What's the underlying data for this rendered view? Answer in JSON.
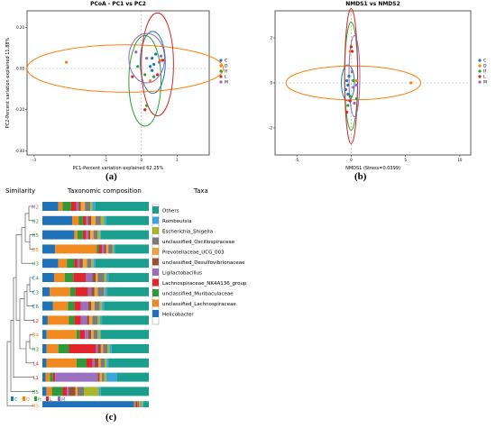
{
  "panel_labels": {
    "a": "(a)",
    "b": "(b)",
    "c": "(c)"
  },
  "colors": {
    "C": "#1f77b4",
    "D": "#ff7f0e",
    "H": "#2ca02c",
    "L": "#d62728",
    "M": "#9467bd"
  },
  "chart_data": [
    {
      "type": "scatter",
      "title": "PCoA - PC1 vs PC2",
      "xlabel": "PC1-Percent variation explained 62.25%",
      "ylabel": "PC2-Percent variation explained 11.88%",
      "xlim": [
        -3.2,
        1.9
      ],
      "ylim": [
        -0.42,
        0.28
      ],
      "xticks": [
        -3,
        -2,
        -1,
        0,
        1
      ],
      "yticks": [
        -0.4,
        -0.2,
        0,
        0.2
      ],
      "xtick_labels": {
        "-3": "-3",
        "-1": "-1",
        "0": "0",
        "1": "1"
      },
      "ytick_labels": {
        "0.2": "0.20",
        "0": "0.00",
        "-0.2": "-0.20",
        "-0.4": "-0.40"
      },
      "legend": {
        "position": "right",
        "entries": [
          "C",
          "D",
          "H",
          "L",
          "M"
        ]
      },
      "series": [
        {
          "name": "C",
          "points": [
            [
              0.3,
              0.05
            ],
            [
              0.35,
              0.02
            ],
            [
              0.25,
              0.01
            ],
            [
              0.4,
              0.07
            ],
            [
              0.3,
              -0.01
            ]
          ],
          "ellipse": {
            "cx": 0.32,
            "cy": 0.03,
            "rx": 0.35,
            "ry": 0.15
          }
        },
        {
          "name": "D",
          "points": [
            [
              -2.1,
              0.03
            ],
            [
              0.55,
              0.04
            ],
            [
              0.25,
              -0.06
            ]
          ],
          "ellipse": {
            "cx": -0.45,
            "cy": 0.0,
            "rx": 2.75,
            "ry": 0.115
          }
        },
        {
          "name": "H",
          "points": [
            [
              0.1,
              -0.03
            ],
            [
              0.35,
              -0.04
            ],
            [
              0.15,
              -0.18
            ],
            [
              -0.1,
              0.01
            ]
          ],
          "ellipse": {
            "cx": 0.1,
            "cy": -0.06,
            "rx": 0.45,
            "ry": 0.22
          }
        },
        {
          "name": "L",
          "points": [
            [
              0.1,
              -0.2
            ],
            [
              0.45,
              -0.03
            ],
            [
              -0.25,
              -0.04
            ],
            [
              0.6,
              0.04
            ]
          ],
          "ellipse": {
            "cx": 0.45,
            "cy": 0.02,
            "rx": 0.45,
            "ry": 0.25
          }
        },
        {
          "name": "M",
          "points": [
            [
              0.5,
              0.03
            ],
            [
              0.55,
              0.06
            ],
            [
              -0.15,
              0.08
            ],
            [
              0.15,
              0.05
            ]
          ],
          "ellipse": {
            "cx": 0.15,
            "cy": 0.05,
            "rx": 0.5,
            "ry": 0.12
          }
        }
      ]
    },
    {
      "type": "scatter",
      "title": "NMDS1 vs NMDS2",
      "xlabel": "NMDS1 (Stress=0.0399)",
      "ylabel": "NMDS2",
      "xlim": [
        -7,
        11
      ],
      "ylim": [
        -3.2,
        3.2
      ],
      "xticks": [
        -5,
        0,
        5,
        10
      ],
      "yticks": [
        -2,
        0,
        2
      ],
      "xtick_labels": {
        "-5": "-5",
        "0": "0",
        "5": "5",
        "10": "10"
      },
      "ytick_labels": {
        "2": "2",
        "0": "0",
        "-2": "-2"
      },
      "legend": {
        "position": "right",
        "entries": [
          "C",
          "D",
          "H",
          "L",
          "M"
        ]
      },
      "series": [
        {
          "name": "C",
          "points": [
            [
              -0.4,
              0.1
            ],
            [
              -0.3,
              -0.1
            ],
            [
              -0.2,
              0.3
            ],
            [
              -0.5,
              -0.3
            ],
            [
              -0.3,
              -0.5
            ]
          ],
          "ellipse": {
            "cx": -0.3,
            "cy": 0.0,
            "rx": 0.6,
            "ry": 0.8
          }
        },
        {
          "name": "D",
          "points": [
            [
              5.5,
              0.0
            ],
            [
              0.5,
              0.1
            ],
            [
              -0.1,
              1.4
            ]
          ],
          "ellipse": {
            "cx": 0.2,
            "cy": 0.0,
            "rx": 6.2,
            "ry": 0.75
          }
        },
        {
          "name": "H",
          "points": [
            [
              -0.1,
              -0.6
            ],
            [
              0.5,
              -0.7
            ],
            [
              -0.3,
              -1.0
            ],
            [
              0.2,
              0.1
            ]
          ],
          "ellipse": {
            "cx": 0.0,
            "cy": 0.3,
            "rx": 0.6,
            "ry": 2.4
          }
        },
        {
          "name": "L",
          "points": [
            [
              0.0,
              1.6
            ],
            [
              -0.1,
              -0.8
            ],
            [
              0.1,
              1.4
            ],
            [
              -0.4,
              -1.3
            ]
          ],
          "ellipse": {
            "cx": 0.0,
            "cy": 0.3,
            "rx": 0.6,
            "ry": 3.0
          }
        },
        {
          "name": "M",
          "points": [
            [
              0.2,
              -0.2
            ],
            [
              0.5,
              -0.1
            ],
            [
              0.1,
              0.5
            ],
            [
              0.3,
              -0.9
            ]
          ],
          "ellipse": {
            "cx": 0.3,
            "cy": 0.3,
            "rx": 0.5,
            "ry": 1.8
          }
        }
      ]
    },
    {
      "type": "bar",
      "stacked": true,
      "orientation": "horizontal",
      "header_similarity": "Similarity",
      "header_composition": "Taxonomic composition",
      "header_taxa": "Taxa",
      "taxa": [
        "Others",
        "Romboutsia",
        "Escherichia_Shigella",
        "unclassified_Oscillospiraceae",
        "Prevotellaceae_UCG_003",
        "unclassified_Desulfovibrionaceae",
        "Ligilactobacillus",
        "Lachnospiraceae_NK4A136_group",
        "unclassified_Muribaculaceae",
        "unclassified_Lachnospiraceae",
        "Helicobacter"
      ],
      "taxa_colors": [
        "#1a9e8e",
        "#3ca6dc",
        "#a9b82a",
        "#7a7a7a",
        "#f2a33a",
        "#9a4f35",
        "#9a6fc0",
        "#e0262a",
        "#2e9a3a",
        "#f0891f",
        "#1f72b8"
      ],
      "samples": [
        {
          "label": "M2",
          "group": "M",
          "values": [
            0.5,
            0.03,
            0.02,
            0.05,
            0.04,
            0.02,
            0.02,
            0.05,
            0.08,
            0.04,
            0.15
          ]
        },
        {
          "label": "H2",
          "group": "H",
          "values": [
            0.4,
            0.02,
            0.03,
            0.05,
            0.04,
            0.03,
            0.02,
            0.03,
            0.04,
            0.06,
            0.28
          ]
        },
        {
          "label": "H5",
          "group": "H",
          "values": [
            0.45,
            0.01,
            0.02,
            0.04,
            0.03,
            0.02,
            0.02,
            0.03,
            0.05,
            0.03,
            0.3
          ]
        },
        {
          "label": "D5",
          "group": "D",
          "values": [
            0.32,
            0.01,
            0.01,
            0.04,
            0.02,
            0.02,
            0.02,
            0.03,
            0.02,
            0.39,
            0.12
          ]
        },
        {
          "label": "H3",
          "group": "H",
          "values": [
            0.5,
            0.02,
            0.02,
            0.04,
            0.04,
            0.03,
            0.02,
            0.03,
            0.07,
            0.08,
            0.15
          ]
        },
        {
          "label": "C4",
          "group": "C",
          "values": [
            0.38,
            0.02,
            0.02,
            0.06,
            0.02,
            0.03,
            0.06,
            0.12,
            0.08,
            0.1,
            0.11
          ]
        },
        {
          "label": "C3",
          "group": "C",
          "values": [
            0.39,
            0.02,
            0.01,
            0.06,
            0.03,
            0.03,
            0.03,
            0.12,
            0.05,
            0.19,
            0.07
          ]
        },
        {
          "label": "C6",
          "group": "C",
          "values": [
            0.42,
            0.02,
            0.02,
            0.05,
            0.03,
            0.03,
            0.07,
            0.06,
            0.06,
            0.14,
            0.1
          ]
        },
        {
          "label": "L2",
          "group": "L",
          "values": [
            0.44,
            0.02,
            0.02,
            0.05,
            0.03,
            0.02,
            0.06,
            0.06,
            0.05,
            0.2,
            0.05
          ]
        },
        {
          "label": "D4",
          "group": "D",
          "values": [
            0.45,
            0.01,
            0.02,
            0.04,
            0.02,
            0.03,
            0.03,
            0.05,
            0.03,
            0.28,
            0.04
          ]
        },
        {
          "label": "H3",
          "group": "H",
          "values": [
            0.35,
            0.02,
            0.02,
            0.04,
            0.02,
            0.03,
            0.02,
            0.25,
            0.1,
            0.11,
            0.04
          ]
        },
        {
          "label": "L4",
          "group": "L",
          "values": [
            0.4,
            0.02,
            0.02,
            0.04,
            0.02,
            0.04,
            0.02,
            0.06,
            0.1,
            0.3,
            0.04
          ]
        },
        {
          "label": "L1",
          "group": "L",
          "values": [
            0.3,
            0.1,
            0.02,
            0.02,
            0.02,
            0.02,
            0.4,
            0.02,
            0.03,
            0.04,
            0.03
          ]
        },
        {
          "label": "H5",
          "group": "H",
          "values": [
            0.45,
            0.02,
            0.14,
            0.06,
            0.02,
            0.06,
            0.02,
            0.04,
            0.1,
            0.05,
            0.04
          ]
        },
        {
          "label": "D3",
          "group": "D",
          "values": [
            0.05,
            0.01,
            0.01,
            0.01,
            0.01,
            0.01,
            0.01,
            0.01,
            0.01,
            0.01,
            0.86
          ]
        }
      ],
      "group_legend": [
        {
          "group": "C",
          "label": "C"
        },
        {
          "group": "D",
          "label": "D"
        },
        {
          "group": "H",
          "label": "H"
        },
        {
          "group": "L",
          "label": "L"
        },
        {
          "group": "M",
          "label": "M"
        }
      ]
    }
  ]
}
